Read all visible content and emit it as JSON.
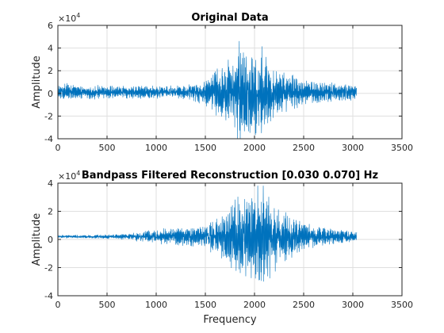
{
  "figure": {
    "background": "#ffffff"
  },
  "chart_data": [
    {
      "type": "line",
      "title": "Original Data",
      "xlabel": "",
      "ylabel": "Amplitude",
      "xlim": [
        0,
        3500
      ],
      "ylim": [
        -4,
        6
      ],
      "y_exponent_label": "×10",
      "y_exponent": "4",
      "xticks": [
        "0",
        "500",
        "1000",
        "1500",
        "2000",
        "2500",
        "3000",
        "3500"
      ],
      "yticks": [
        "-4",
        "-2",
        "0",
        "2",
        "4",
        "6"
      ],
      "grid": true,
      "color": "#0072bd",
      "series": [
        {
          "x_range": [
            1,
            3040
          ],
          "envelope": [
            {
              "x": 0,
              "amp": 0.5
            },
            {
              "x": 100,
              "amp": 0.8
            },
            {
              "x": 200,
              "amp": 0.5
            },
            {
              "x": 400,
              "amp": 0.6
            },
            {
              "x": 600,
              "amp": 0.5
            },
            {
              "x": 800,
              "amp": 0.5
            },
            {
              "x": 1000,
              "amp": 0.5
            },
            {
              "x": 1200,
              "amp": 0.55
            },
            {
              "x": 1400,
              "amp": 0.8
            },
            {
              "x": 1550,
              "amp": 1.2
            },
            {
              "x": 1650,
              "amp": 2.2
            },
            {
              "x": 1780,
              "amp": 2.8
            },
            {
              "x": 1850,
              "amp": 4.1
            },
            {
              "x": 1950,
              "amp": 3.2
            },
            {
              "x": 2020,
              "amp": 4.1
            },
            {
              "x": 2100,
              "amp": 3.5
            },
            {
              "x": 2200,
              "amp": 2.0
            },
            {
              "x": 2350,
              "amp": 1.5
            },
            {
              "x": 2500,
              "amp": 1.0
            },
            {
              "x": 2700,
              "amp": 0.8
            },
            {
              "x": 2900,
              "amp": 0.7
            },
            {
              "x": 3040,
              "amp": 0.6
            }
          ]
        }
      ]
    },
    {
      "type": "line",
      "title": "Bandpass Filtered Reconstruction [0.030 0.070] Hz",
      "xlabel": "Frequency",
      "ylabel": "Amplitude",
      "xlim": [
        0,
        3500
      ],
      "ylim": [
        -4,
        4
      ],
      "y_exponent_label": "×10",
      "y_exponent": "4",
      "xticks": [
        "0",
        "500",
        "1000",
        "1500",
        "2000",
        "2500",
        "3000",
        "3500"
      ],
      "yticks": [
        "-4",
        "-2",
        "0",
        "2",
        "4"
      ],
      "grid": true,
      "color": "#0072bd",
      "series": [
        {
          "x_range": [
            1,
            3040
          ],
          "envelope": [
            {
              "x": 0,
              "amp": 0.1
            },
            {
              "x": 300,
              "amp": 0.1
            },
            {
              "x": 600,
              "amp": 0.15
            },
            {
              "x": 800,
              "amp": 0.3
            },
            {
              "x": 1000,
              "amp": 0.5
            },
            {
              "x": 1200,
              "amp": 0.55
            },
            {
              "x": 1400,
              "amp": 0.7
            },
            {
              "x": 1550,
              "amp": 1.0
            },
            {
              "x": 1650,
              "amp": 1.4
            },
            {
              "x": 1780,
              "amp": 2.2
            },
            {
              "x": 1850,
              "amp": 2.8
            },
            {
              "x": 1950,
              "amp": 2.4
            },
            {
              "x": 2020,
              "amp": 3.5
            },
            {
              "x": 2100,
              "amp": 3.2
            },
            {
              "x": 2200,
              "amp": 2.5
            },
            {
              "x": 2350,
              "amp": 1.4
            },
            {
              "x": 2500,
              "amp": 0.9
            },
            {
              "x": 2700,
              "amp": 0.6
            },
            {
              "x": 2900,
              "amp": 0.4
            },
            {
              "x": 3040,
              "amp": 0.3
            }
          ]
        }
      ]
    }
  ]
}
